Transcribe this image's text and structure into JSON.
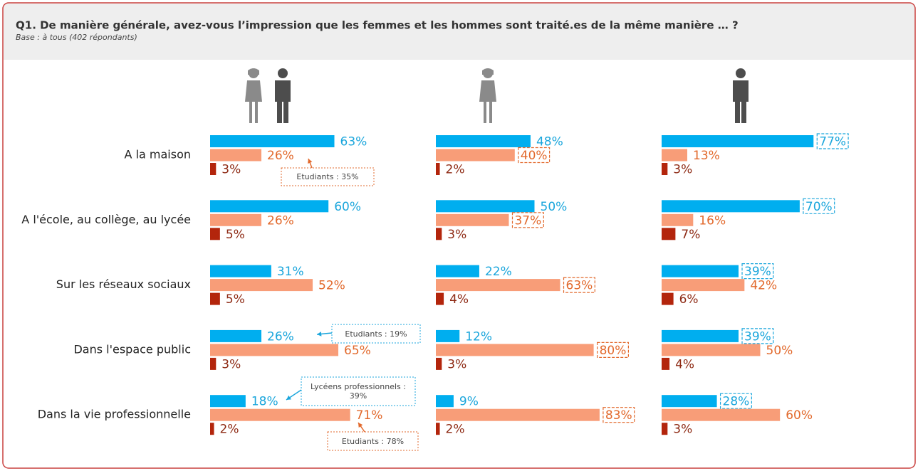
{
  "chart_data": {
    "type": "bar",
    "orientation": "horizontal",
    "title": "Q1. De manière générale, avez-vous l’impression que les femmes et les hommes sont traité.es de la même manière … ?",
    "subtitle": "Base : à tous (402 répondants)",
    "categories": [
      "A la maison",
      "A l'école, au collège, au lycée",
      "Sur les réseaux sociaux",
      "Dans l'espace public",
      "Dans la vie professionnelle"
    ],
    "xlim": [
      0,
      100
    ],
    "panels": [
      {
        "series": [
          {
            "color": "#00aeef",
            "label_color": "#1ba6dc",
            "values": [
              63,
              60,
              31,
              26,
              18
            ],
            "value_labels": [
              "63%",
              "60%",
              "31%",
              "26%",
              "18%"
            ],
            "boxed": [
              false,
              false,
              false,
              false,
              false
            ]
          },
          {
            "color": "#f89d78",
            "label_color": "#e2692c",
            "values": [
              26,
              26,
              52,
              65,
              71
            ],
            "value_labels": [
              "26%",
              "26%",
              "52%",
              "65%",
              "71%"
            ],
            "boxed": [
              false,
              false,
              false,
              false,
              false
            ]
          },
          {
            "color": "#b3250c",
            "label_color": "#8e2a14",
            "values": [
              3,
              5,
              5,
              3,
              2
            ],
            "value_labels": [
              "3%",
              "5%",
              "5%",
              "3%",
              "2%"
            ],
            "boxed": [
              false,
              false,
              false,
              false,
              false
            ]
          }
        ]
      },
      {
        "series": [
          {
            "color": "#00aeef",
            "label_color": "#1ba6dc",
            "values": [
              48,
              50,
              22,
              12,
              9
            ],
            "value_labels": [
              "48%",
              "50%",
              "22%",
              "12%",
              "9%"
            ],
            "boxed": [
              false,
              false,
              false,
              false,
              false
            ]
          },
          {
            "color": "#f89d78",
            "label_color": "#e2692c",
            "values": [
              40,
              37,
              63,
              80,
              83
            ],
            "value_labels": [
              "40%",
              "37%",
              "63%",
              "80%",
              "83%"
            ],
            "boxed": [
              true,
              true,
              true,
              true,
              true
            ]
          },
          {
            "color": "#b3250c",
            "label_color": "#8e2a14",
            "values": [
              2,
              3,
              4,
              3,
              2
            ],
            "value_labels": [
              "2%",
              "3%",
              "4%",
              "3%",
              "2%"
            ],
            "boxed": [
              false,
              false,
              false,
              false,
              false
            ]
          }
        ]
      },
      {
        "series": [
          {
            "color": "#00aeef",
            "label_color": "#1ba6dc",
            "values": [
              77,
              70,
              39,
              39,
              28
            ],
            "value_labels": [
              "77%",
              "70%",
              "39%",
              "39%",
              "28%"
            ],
            "boxed": [
              true,
              true,
              true,
              true,
              true
            ]
          },
          {
            "color": "#f89d78",
            "label_color": "#e2692c",
            "values": [
              13,
              16,
              42,
              50,
              60
            ],
            "value_labels": [
              "13%",
              "16%",
              "42%",
              "50%",
              "60%"
            ],
            "boxed": [
              false,
              false,
              false,
              false,
              false
            ]
          },
          {
            "color": "#b3250c",
            "label_color": "#8e2a14",
            "values": [
              3,
              7,
              6,
              4,
              3
            ],
            "value_labels": [
              "3%",
              "7%",
              "6%",
              "4%",
              "3%"
            ],
            "boxed": [
              false,
              false,
              false,
              false,
              false
            ]
          }
        ]
      }
    ],
    "annotations": [
      "Etudiants : 35%",
      "Etudiants : 19%",
      "Lycéens professionnels : 39%",
      "Etudiants : 78%"
    ]
  }
}
